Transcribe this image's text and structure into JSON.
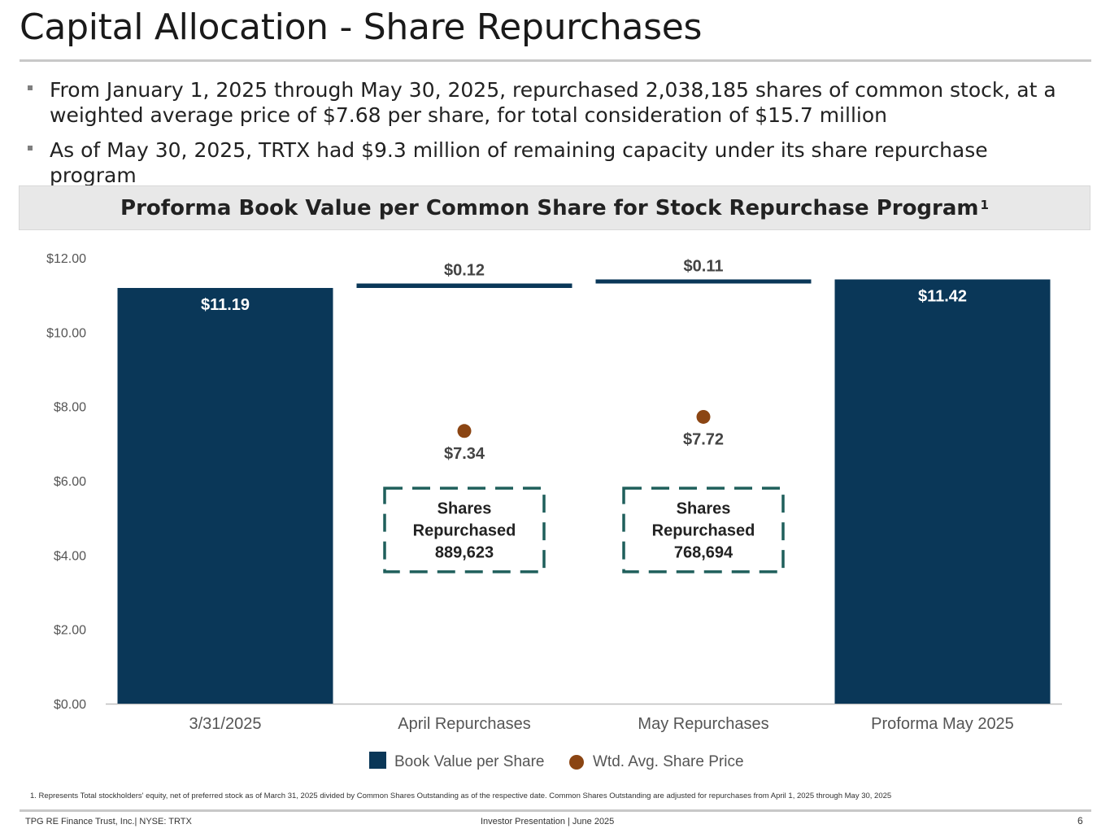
{
  "slide": {
    "title": "Capital Allocation - Share Repurchases",
    "bullets": [
      "From January 1, 2025 through May 30, 2025, repurchased 2,038,185 shares of common stock, at a weighted average price of $7.68 per share, for total consideration of $15.7 million",
      "As of May 30, 2025, TRTX had $9.3 million of remaining capacity under its share repurchase program"
    ],
    "chart_header": "Proforma Book Value per Common Share for Stock Repurchase Program",
    "chart_header_sup": "1",
    "footnote": "1. Represents Total stockholders' equity, net of preferred stock as of March 31, 2025 divided by Common Shares Outstanding as of the respective date. Common Shares Outstanding are adjusted for repurchases from April 1, 2025 through May 30, 2025",
    "footer_left": "TPG RE Finance Trust, Inc.| NYSE: TRTX",
    "footer_center": "Investor Presentation | June 2025",
    "page_number": "6"
  },
  "colors": {
    "bar": "#0a3758",
    "dot": "#8b4513",
    "box_border": "#1f5f5b",
    "axis_text": "#555555",
    "label_dark": "#444444"
  },
  "chart_data": {
    "type": "bar",
    "subtype": "waterfall",
    "categories": [
      "3/31/2025",
      "April Repurchases",
      "May Repurchases",
      "Proforma May 2025"
    ],
    "series": [
      {
        "name": "Book Value per Share",
        "kind": "waterfall",
        "bars": [
          {
            "category": "3/31/2025",
            "type": "total",
            "value": 11.19,
            "label": "$11.19"
          },
          {
            "category": "April Repurchases",
            "type": "increment",
            "base": 11.19,
            "value": 0.12,
            "label": "$0.12"
          },
          {
            "category": "May Repurchases",
            "type": "increment",
            "base": 11.31,
            "value": 0.11,
            "label": "$0.11"
          },
          {
            "category": "Proforma May 2025",
            "type": "total",
            "value": 11.42,
            "label": "$11.42"
          }
        ]
      },
      {
        "name": "Wtd. Avg. Share Price",
        "kind": "scatter",
        "points": [
          {
            "category": "April Repurchases",
            "value": 7.34,
            "label": "$7.34"
          },
          {
            "category": "May Repurchases",
            "value": 7.72,
            "label": "$7.72"
          }
        ]
      }
    ],
    "annotations": [
      {
        "category": "April Repurchases",
        "lines": [
          "Shares",
          "Repurchased",
          "889,623"
        ],
        "top_value": 5.8,
        "bottom_value": 3.55
      },
      {
        "category": "May Repurchases",
        "lines": [
          "Shares",
          "Repurchased",
          "768,694"
        ],
        "top_value": 5.8,
        "bottom_value": 3.55
      }
    ],
    "ylim": [
      0,
      12
    ],
    "yticks": [
      0,
      2,
      4,
      6,
      8,
      10,
      12
    ],
    "ytick_labels": [
      "$0.00",
      "$2.00",
      "$4.00",
      "$6.00",
      "$8.00",
      "$10.00",
      "$12.00"
    ],
    "grid": false,
    "legend": [
      "Book Value per Share",
      "Wtd. Avg. Share Price"
    ],
    "legend_position": "bottom-center",
    "xlabel": "",
    "ylabel": ""
  }
}
